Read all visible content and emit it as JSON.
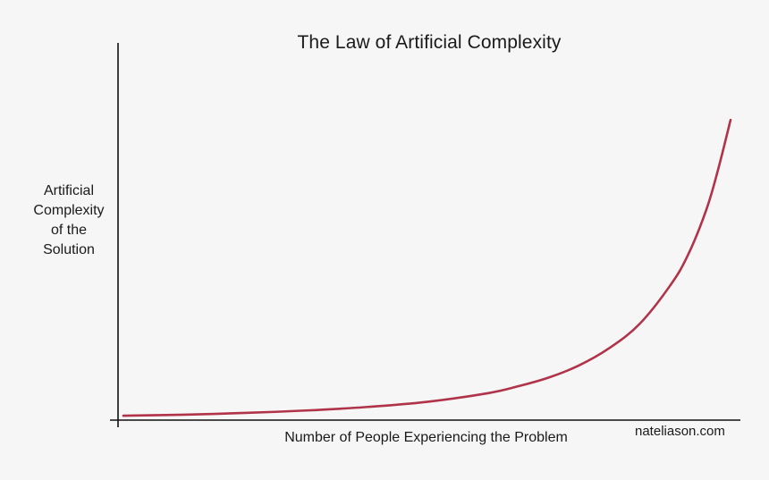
{
  "chart_data": {
    "type": "line",
    "title": "The Law of Artificial Complexity",
    "ylabel": "Artificial\nComplexity\nof the\nSolution",
    "xlabel": "Number of People Experiencing the Problem",
    "credit": "nateliason.com",
    "series": [
      {
        "color": "#b0334a",
        "x": [
          0,
          0.1,
          0.2,
          0.3,
          0.4,
          0.5,
          0.6,
          0.65,
          0.7,
          0.75,
          0.8,
          0.85,
          0.9,
          0.93,
          0.96,
          0.98,
          1.0
        ],
        "y": [
          0.005,
          0.008,
          0.013,
          0.02,
          0.03,
          0.045,
          0.07,
          0.09,
          0.115,
          0.15,
          0.2,
          0.27,
          0.38,
          0.47,
          0.6,
          0.72,
          0.86
        ]
      }
    ],
    "xlim": [
      0,
      1
    ],
    "ylim": [
      0,
      1
    ],
    "grid": false,
    "tick_labels": false
  }
}
